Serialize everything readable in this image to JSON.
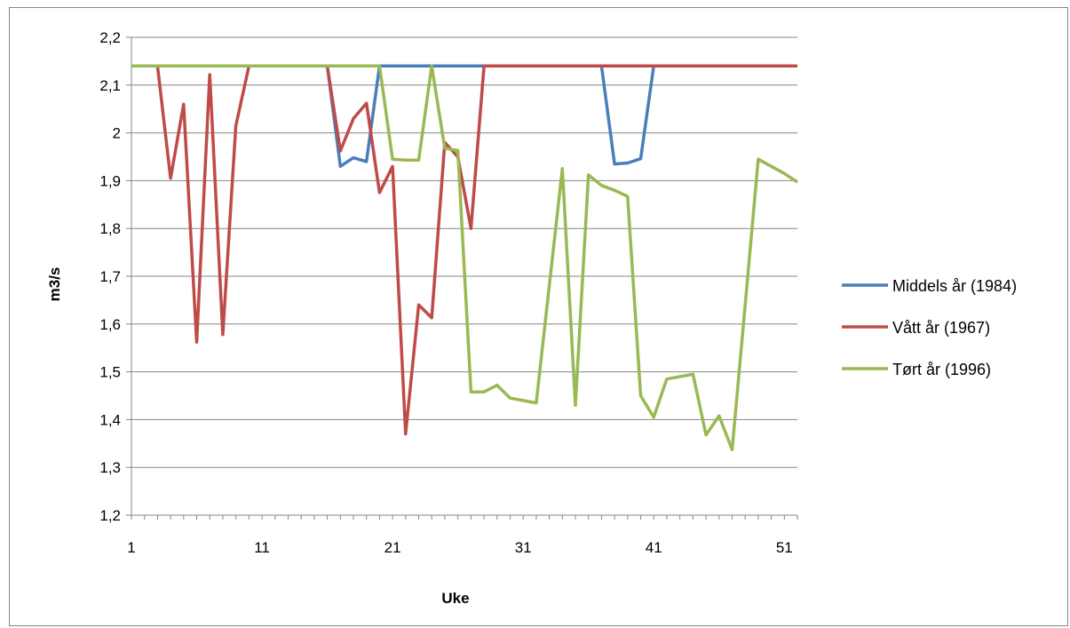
{
  "chart_data": {
    "type": "line",
    "xlabel": "Uke",
    "ylabel": "m3/s",
    "xlim": [
      1,
      52
    ],
    "ylim": [
      1.2,
      2.2
    ],
    "xticks": [
      1,
      11,
      21,
      31,
      41,
      51
    ],
    "xtick_labels": [
      "1",
      "11",
      "21",
      "31",
      "41",
      "51"
    ],
    "yticks": [
      1.2,
      1.3,
      1.4,
      1.5,
      1.6,
      1.7,
      1.8,
      1.9,
      2.0,
      2.1,
      2.2
    ],
    "ytick_labels": [
      "1,2",
      "1,3",
      "1,4",
      "1,5",
      "1,6",
      "1,7",
      "1,8",
      "1,9",
      "2",
      "2,1",
      "2,2"
    ],
    "grid": "horizontal",
    "legend_position": "right",
    "x": [
      1,
      2,
      3,
      4,
      5,
      6,
      7,
      8,
      9,
      10,
      11,
      12,
      13,
      14,
      15,
      16,
      17,
      18,
      19,
      20,
      21,
      22,
      23,
      24,
      25,
      26,
      27,
      28,
      29,
      30,
      31,
      32,
      33,
      34,
      35,
      36,
      37,
      38,
      39,
      40,
      41,
      42,
      43,
      44,
      45,
      46,
      47,
      48,
      49,
      50,
      51,
      52
    ],
    "series": [
      {
        "name": "Middels år (1984)",
        "color": "#4a7ebb",
        "values": [
          2.14,
          2.14,
          2.14,
          2.14,
          2.14,
          2.14,
          2.14,
          2.14,
          2.14,
          2.14,
          2.14,
          2.14,
          2.14,
          2.14,
          2.14,
          2.14,
          1.93,
          1.948,
          1.94,
          2.14,
          2.14,
          2.14,
          2.14,
          2.14,
          2.14,
          2.14,
          2.14,
          2.14,
          2.14,
          2.14,
          2.14,
          2.14,
          2.14,
          2.14,
          2.14,
          2.14,
          2.14,
          1.935,
          1.937,
          1.946,
          2.14,
          2.14,
          2.14,
          2.14,
          2.14,
          2.14,
          2.14,
          2.14,
          2.14,
          2.14,
          2.14,
          2.14
        ]
      },
      {
        "name": "Vått år (1967)",
        "color": "#be4b48",
        "values": [
          2.14,
          2.14,
          2.14,
          1.905,
          2.06,
          1.562,
          2.122,
          1.578,
          2.015,
          2.14,
          2.14,
          2.14,
          2.14,
          2.14,
          2.14,
          2.14,
          1.962,
          2.03,
          2.062,
          1.875,
          1.93,
          1.37,
          1.64,
          1.613,
          1.98,
          1.95,
          1.8,
          2.14,
          2.14,
          2.14,
          2.14,
          2.14,
          2.14,
          2.14,
          2.14,
          2.14,
          2.14,
          2.14,
          2.14,
          2.14,
          2.14,
          2.14,
          2.14,
          2.14,
          2.14,
          2.14,
          2.14,
          2.14,
          2.14,
          2.14,
          2.14,
          2.14
        ]
      },
      {
        "name": "Tørt år (1996)",
        "color": "#98b954",
        "values": [
          2.14,
          2.14,
          2.14,
          2.14,
          2.14,
          2.14,
          2.14,
          2.14,
          2.14,
          2.14,
          2.14,
          2.14,
          2.14,
          2.14,
          2.14,
          2.14,
          2.14,
          2.14,
          2.14,
          2.14,
          1.945,
          1.943,
          1.943,
          2.14,
          1.968,
          1.963,
          1.458,
          1.458,
          1.472,
          1.445,
          1.44,
          1.435,
          1.68,
          1.925,
          1.43,
          1.912,
          1.89,
          1.88,
          1.867,
          1.45,
          1.405,
          1.485,
          1.49,
          1.495,
          1.368,
          1.408,
          1.337,
          1.64,
          1.945,
          1.93,
          1.915,
          1.897
        ]
      }
    ]
  }
}
